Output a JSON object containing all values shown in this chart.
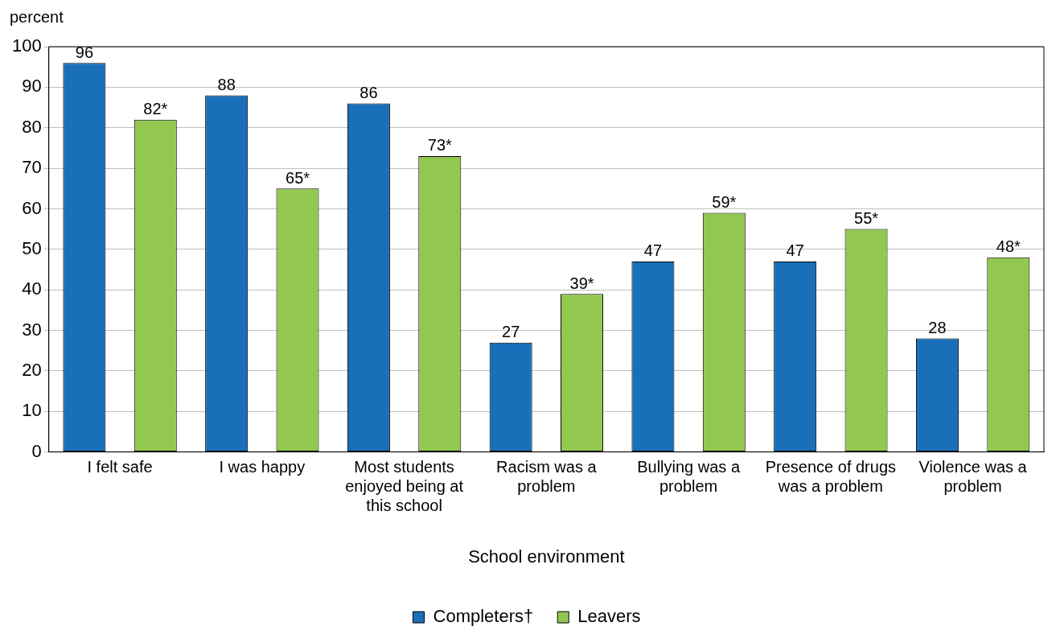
{
  "chart_data": {
    "type": "bar",
    "ylabel": "percent",
    "xlabel": "School environment",
    "categories": [
      "I felt safe",
      "I was happy",
      "Most students enjoyed being at this school",
      "Racism was a problem",
      "Bullying was a problem",
      "Presence of drugs was a problem",
      "Violence was a problem"
    ],
    "series": [
      {
        "name": "Completers†",
        "color": "#1a70b8",
        "values": [
          96,
          88,
          86,
          27,
          47,
          47,
          28
        ],
        "value_labels": [
          "96",
          "88",
          "86",
          "27",
          "47",
          "47",
          "28"
        ]
      },
      {
        "name": "Leavers",
        "color": "#92c850",
        "values": [
          82,
          65,
          73,
          39,
          59,
          55,
          48
        ],
        "value_labels": [
          "82*",
          "65*",
          "73*",
          "39*",
          "59*",
          "55*",
          "48*"
        ]
      }
    ],
    "ylim": [
      0,
      100
    ],
    "yticks": [
      0,
      10,
      20,
      30,
      40,
      50,
      60,
      70,
      80,
      90,
      100
    ],
    "grid": "y",
    "legend": "bottom"
  }
}
